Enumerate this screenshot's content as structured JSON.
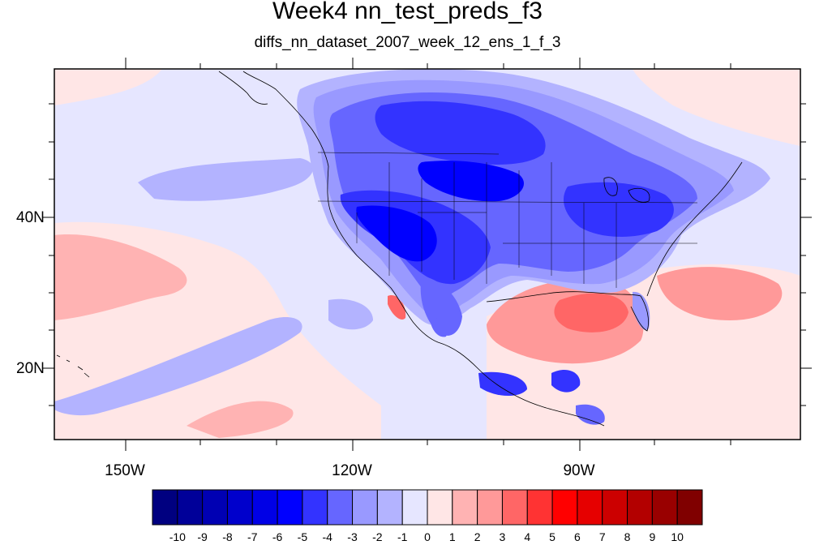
{
  "title": "Week4 nn_test_preds_f3",
  "subtitle": "diffs_nn_dataset_2007_week_12_ens_1_f_3",
  "lat_labels": [
    "40N",
    "20N"
  ],
  "lon_labels": [
    "150W",
    "120W",
    "90W"
  ],
  "colorbar": {
    "labels": [
      "-10",
      "-9",
      "-8",
      "-7",
      "-6",
      "-5",
      "-4",
      "-3",
      "-2",
      "-1",
      "0",
      "1",
      "2",
      "3",
      "4",
      "5",
      "6",
      "7",
      "8",
      "9",
      "10"
    ],
    "colors": [
      "#000080",
      "#000099",
      "#0000b3",
      "#0000cc",
      "#0000e6",
      "#0000ff",
      "#3333ff",
      "#6666ff",
      "#9999ff",
      "#b3b3ff",
      "#e6e6ff",
      "#ffe6e6",
      "#ffb3b3",
      "#ff9999",
      "#ff6666",
      "#ff3333",
      "#ff0000",
      "#e60000",
      "#cc0000",
      "#b30000",
      "#990000",
      "#800000"
    ]
  },
  "map_colors": {
    "ocean_base": "#e6e6ff",
    "light_red": "#ffe6e6",
    "red2": "#ffb3b3",
    "red3": "#ff9999",
    "red4": "#ff6666",
    "blue2": "#b3b3ff",
    "blue3": "#9999ff",
    "blue4": "#6666ff",
    "blue5": "#3333ff",
    "blue6": "#0000ff",
    "blue7": "#0000e6"
  }
}
